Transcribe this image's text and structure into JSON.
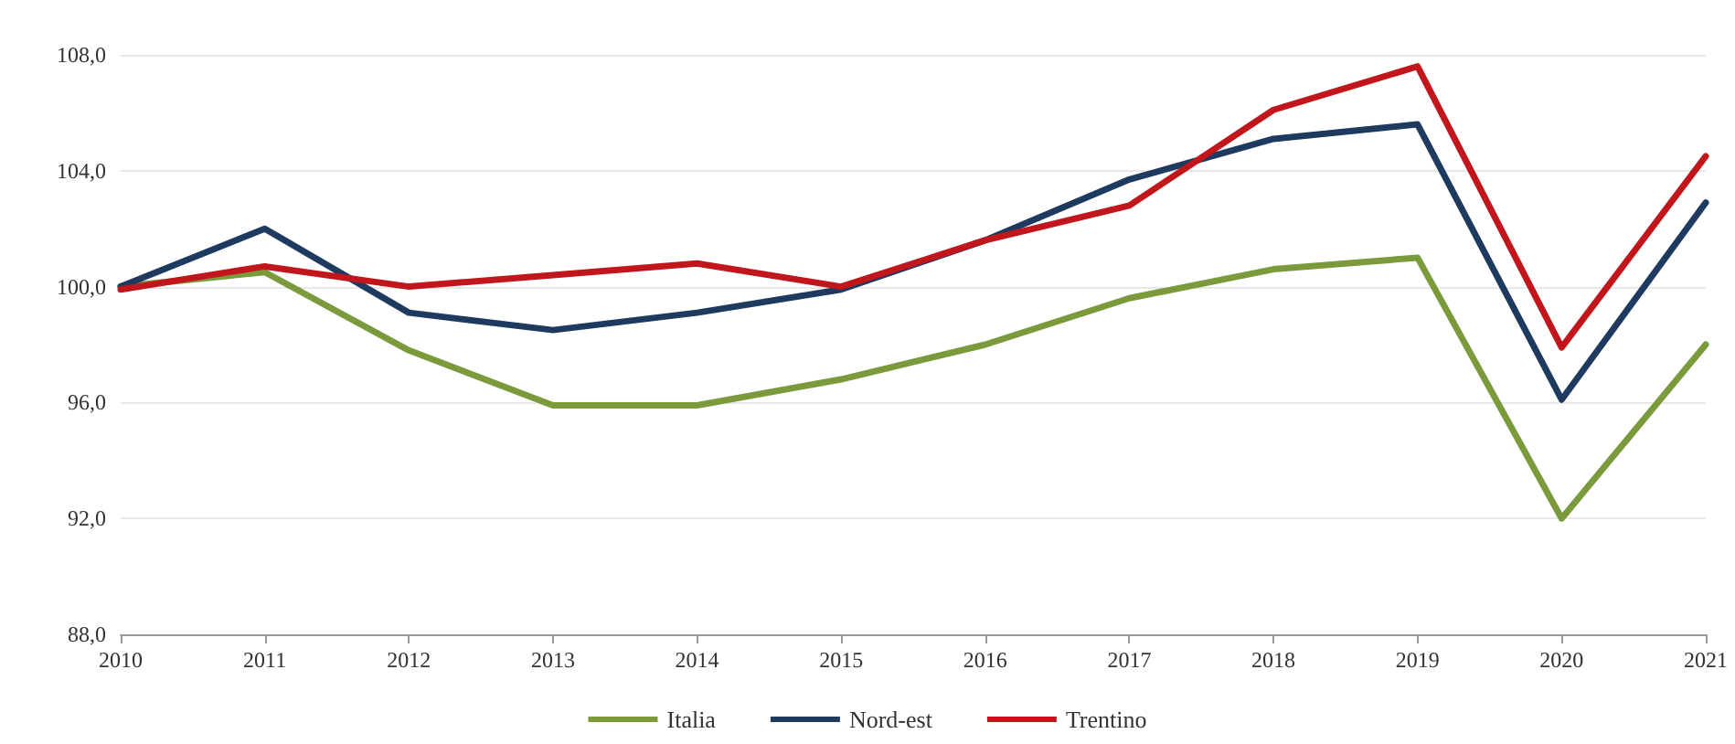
{
  "chart_data": {
    "type": "line",
    "categories": [
      "2010",
      "2011",
      "2012",
      "2013",
      "2014",
      "2015",
      "2016",
      "2017",
      "2018",
      "2019",
      "2020",
      "2021"
    ],
    "series": [
      {
        "name": "Italia",
        "color": "#7a9a3c",
        "values": [
          100.0,
          100.5,
          97.8,
          95.9,
          95.9,
          96.8,
          98.0,
          99.6,
          100.6,
          101.0,
          92.0,
          98.0
        ]
      },
      {
        "name": "Nord-est",
        "color": "#1f3a5f",
        "values": [
          100.0,
          102.0,
          99.1,
          98.5,
          99.1,
          99.9,
          101.6,
          103.7,
          105.1,
          105.6,
          96.1,
          102.9
        ]
      },
      {
        "name": "Trentino",
        "color": "#c0161c",
        "values": [
          99.9,
          100.7,
          100.0,
          100.4,
          100.8,
          100.0,
          101.6,
          102.8,
          106.1,
          107.6,
          97.9,
          104.5
        ]
      }
    ],
    "ylim": [
      88,
      108
    ],
    "yticks": [
      {
        "value": 88,
        "label": "88,0"
      },
      {
        "value": 92,
        "label": "92,0"
      },
      {
        "value": 96,
        "label": "96,0"
      },
      {
        "value": 100,
        "label": "100,0"
      },
      {
        "value": 104,
        "label": "104,0"
      },
      {
        "value": 108,
        "label": "108,0"
      }
    ],
    "grid": "y",
    "legend": "bottom",
    "marker": "none",
    "line_style": "solid"
  }
}
